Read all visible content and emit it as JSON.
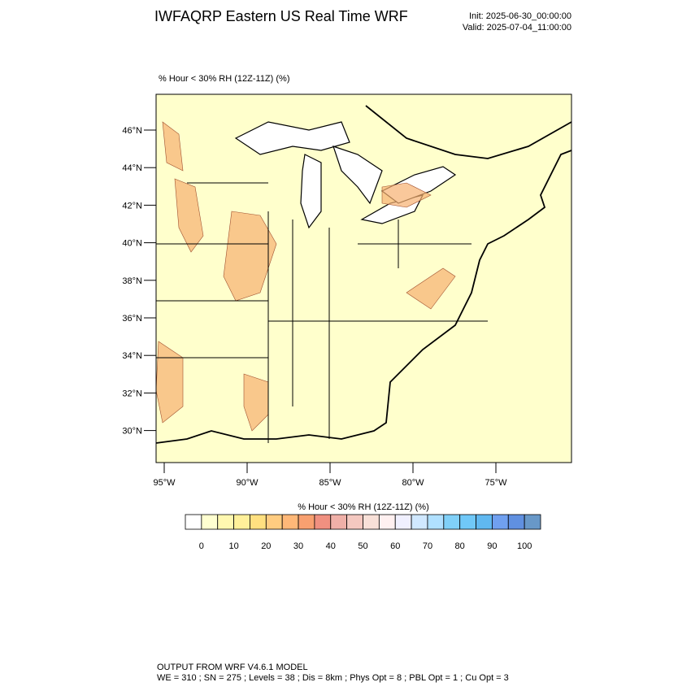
{
  "header": {
    "title": "IWFAQRP Eastern US Real Time WRF",
    "init": "Init: 2025-06-30_00:00:00",
    "valid": "Valid: 2025-07-04_11:00:00"
  },
  "map": {
    "subtitle": "% Hour < 30% RH (12Z-11Z)   (%)",
    "lat_labels": [
      "46°N",
      "44°N",
      "42°N",
      "40°N",
      "38°N",
      "36°N",
      "34°N",
      "32°N",
      "30°N"
    ],
    "lon_labels": [
      "95°W",
      "90°W",
      "85°W",
      "80°W",
      "75°W"
    ]
  },
  "colorbar": {
    "title": "% Hour < 30% RH (12Z-11Z)  (%)",
    "colors": [
      "#ffffff",
      "#ffffd0",
      "#fff8b0",
      "#fff09a",
      "#ffe080",
      "#ffcc80",
      "#ffb878",
      "#f8a070",
      "#f09080",
      "#f0b0a8",
      "#f4c8c0",
      "#f8e0d8",
      "#fff0f0",
      "#f0f0ff",
      "#d0e8ff",
      "#b0e0ff",
      "#80d0f8",
      "#70c8f8",
      "#60b8f0",
      "#70a0f0",
      "#6090e0",
      "#6898c8"
    ],
    "labels": [
      0,
      10,
      20,
      30,
      40,
      50,
      60,
      70,
      80,
      90,
      100
    ]
  },
  "footer": {
    "line1": "OUTPUT FROM WRF V4.6.1 MODEL",
    "line2": "WE = 310 ; SN = 275 ; Levels = 38 ; Dis = 8km ; Phys Opt = 8 ; PBL Opt = 1 ; Cu Opt = 3"
  }
}
